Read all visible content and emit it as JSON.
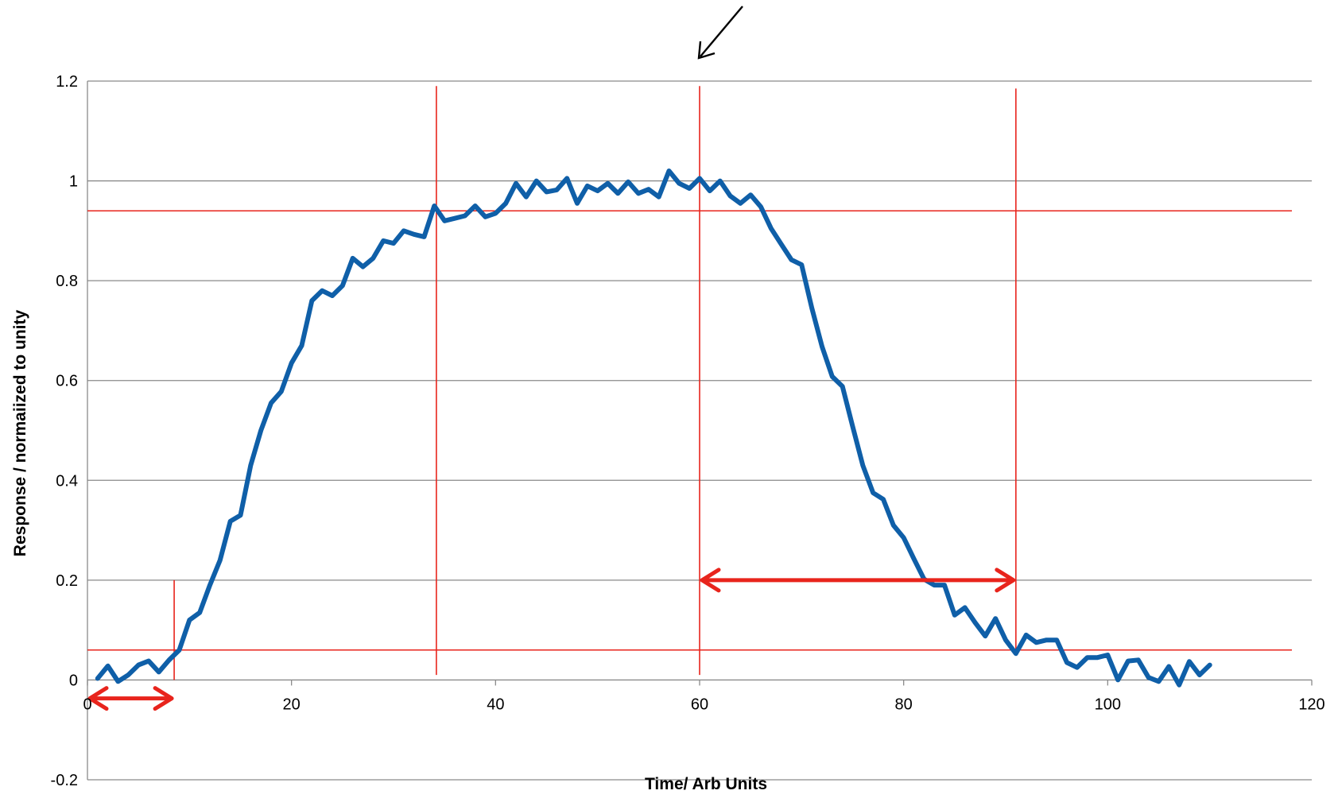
{
  "chart_data": {
    "type": "line",
    "title": "",
    "xlabel": "Time/ Arb Units",
    "ylabel": "Response / normaiized to unity",
    "xlim": [
      0,
      120
    ],
    "ylim": [
      -0.2,
      1.2
    ],
    "x_ticks": [
      0,
      20,
      40,
      60,
      80,
      100,
      120
    ],
    "y_ticks": [
      -0.2,
      0,
      0.2,
      0.4,
      0.6,
      0.8,
      1,
      1.2
    ],
    "x_tick_labels": [
      "0",
      "20",
      "40",
      "60",
      "80",
      "100",
      "120"
    ],
    "y_tick_labels": [
      "-0.2",
      "0",
      "0.2",
      "0.4",
      "0.6",
      "0.8",
      "1",
      "1.2"
    ],
    "grid": "horizontal",
    "legend": "none",
    "series": [
      {
        "color": "#0F5FA8",
        "x": [
          1,
          2,
          3,
          4,
          5,
          6,
          7,
          8,
          9,
          10,
          11,
          12,
          13,
          14,
          15,
          16,
          17,
          18,
          19,
          20,
          21,
          22,
          23,
          24,
          25,
          26,
          27,
          28,
          29,
          30,
          31,
          32,
          33,
          34,
          35,
          36,
          37,
          38,
          39,
          40,
          41,
          42,
          43,
          44,
          45,
          46,
          47,
          48,
          49,
          50,
          51,
          52,
          53,
          54,
          55,
          56,
          57,
          58,
          59,
          60,
          61,
          62,
          63,
          64,
          65,
          66,
          67,
          68,
          69,
          70,
          71,
          72,
          73,
          74,
          75,
          76,
          77,
          78,
          79,
          80,
          81,
          82,
          83,
          84,
          85,
          86,
          87,
          88,
          89,
          90,
          91,
          92,
          93,
          94,
          95,
          96,
          97,
          98,
          99,
          100,
          101,
          102,
          103,
          104,
          105,
          106,
          107,
          108,
          109,
          110
        ],
        "y": [
          0.003,
          0.028,
          -0.003,
          0.01,
          0.03,
          0.038,
          0.016,
          0.04,
          0.06,
          0.12,
          0.135,
          0.19,
          0.24,
          0.318,
          0.33,
          0.43,
          0.5,
          0.555,
          0.578,
          0.635,
          0.67,
          0.76,
          0.78,
          0.77,
          0.79,
          0.845,
          0.828,
          0.845,
          0.88,
          0.875,
          0.9,
          0.893,
          0.888,
          0.95,
          0.92,
          0.925,
          0.93,
          0.95,
          0.928,
          0.935,
          0.955,
          0.995,
          0.968,
          1.0,
          0.978,
          0.982,
          1.005,
          0.955,
          0.99,
          0.98,
          0.995,
          0.975,
          0.998,
          0.975,
          0.983,
          0.968,
          1.02,
          0.995,
          0.985,
          1.005,
          0.98,
          1.0,
          0.97,
          0.955,
          0.972,
          0.948,
          0.905,
          0.873,
          0.842,
          0.832,
          0.745,
          0.668,
          0.608,
          0.588,
          0.508,
          0.43,
          0.375,
          0.362,
          0.31,
          0.285,
          0.243,
          0.202,
          0.19,
          0.19,
          0.13,
          0.145,
          0.115,
          0.088,
          0.123,
          0.08,
          0.053,
          0.09,
          0.075,
          0.08,
          0.08,
          0.035,
          0.025,
          0.045,
          0.045,
          0.05,
          0.0,
          0.038,
          0.04,
          0.005,
          -0.003,
          0.027,
          -0.01,
          0.037,
          0.01,
          0.03
        ]
      }
    ],
    "reference_lines": {
      "color": "#E8241C",
      "horizontal": [
        0.94,
        0.06
      ],
      "vertical": [
        {
          "x": 8.5,
          "y_from": 0.0,
          "y_to": 0.2
        },
        {
          "x": 34.2,
          "y_from": 0.01,
          "y_to": 1.19
        },
        {
          "x": 60,
          "y_from": 0.01,
          "y_to": 1.19
        },
        {
          "x": 91,
          "y_from": 0.05,
          "y_to": 1.185
        }
      ],
      "arrows": [
        {
          "x_from": 0,
          "x_to": 8.5,
          "y": -0.037
        },
        {
          "x_from": 60,
          "x_to": 91,
          "y": 0.2
        }
      ]
    },
    "annotation_arrow": {
      "color": "#000000",
      "points_to_x": 60
    }
  }
}
